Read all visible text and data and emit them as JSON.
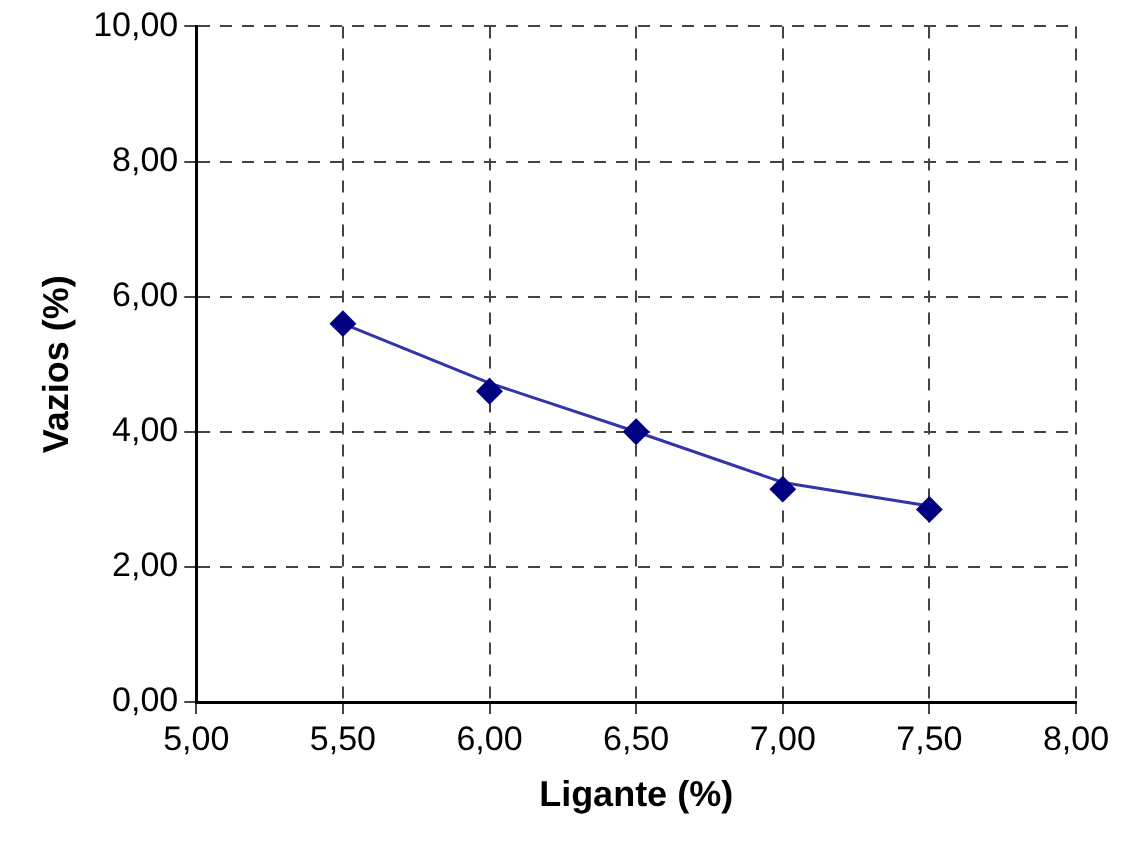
{
  "chart_data": {
    "type": "scatter",
    "xlabel": "Ligante (%)",
    "ylabel": "Vazios (%)",
    "xlim": [
      5,
      8
    ],
    "ylim": [
      0,
      10
    ],
    "xticks": [
      {
        "value": 5,
        "label": "5,00"
      },
      {
        "value": 5.5,
        "label": "5,50"
      },
      {
        "value": 6,
        "label": "6,00"
      },
      {
        "value": 6.5,
        "label": "6,50"
      },
      {
        "value": 7,
        "label": "7,00"
      },
      {
        "value": 7.5,
        "label": "7,50"
      },
      {
        "value": 8,
        "label": "8,00"
      }
    ],
    "yticks": [
      {
        "value": 0,
        "label": "0,00"
      },
      {
        "value": 2,
        "label": "2,00"
      },
      {
        "value": 4,
        "label": "4,00"
      },
      {
        "value": 6,
        "label": "6,00"
      },
      {
        "value": 8,
        "label": "8,00"
      },
      {
        "value": 10,
        "label": "10,00"
      }
    ],
    "grid": true,
    "legend": false,
    "series": [
      {
        "color": "#000080",
        "marker": "diamond",
        "x": [
          5.5,
          6,
          6.5,
          7,
          7.5
        ],
        "values": [
          5.6,
          4.6,
          4.0,
          3.15,
          2.85
        ]
      },
      {
        "type": "line",
        "color": "#3333aa",
        "marker": "none",
        "line_style": "solid",
        "x": [
          5.5,
          6,
          6.5,
          7,
          7.5
        ],
        "values": [
          5.6,
          4.72,
          4.0,
          3.25,
          2.9
        ]
      }
    ]
  }
}
